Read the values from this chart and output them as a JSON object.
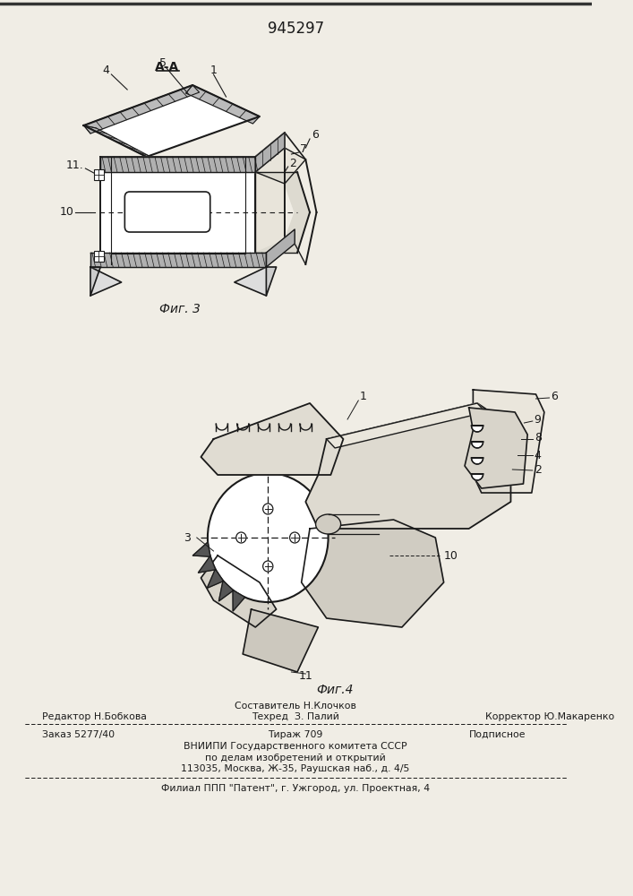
{
  "patent_number": "945297",
  "fig3_label": "Фиг. 3",
  "fig4_label": "Фиг.4",
  "bg_color": "#f0ede5",
  "line_color": "#1a1a1a",
  "text_color": "#1a1a1a",
  "hatch_color": "#888888",
  "footer": {
    "col1_row1": "Редактор Н.Бобкова",
    "col2_row1": "Составитель Н.Клочков",
    "col2_row2": "Техред  З. Палий",
    "col3_row2": "Корректор Ю.Макаренко",
    "order": "Заказ 5277/40",
    "tirazh": "Тираж 709",
    "podpis": "Подписное",
    "vniipи": "ВНИИПИ Государственного комитета СССР",
    "po_delam": "по делам изобретений и открытий",
    "address": "113035, Москва, Ж-35, Раушская наб., д. 4/5",
    "filial": "Филиал ППП \"Патент\", г. Ужгород, ул. Проектная, 4"
  }
}
